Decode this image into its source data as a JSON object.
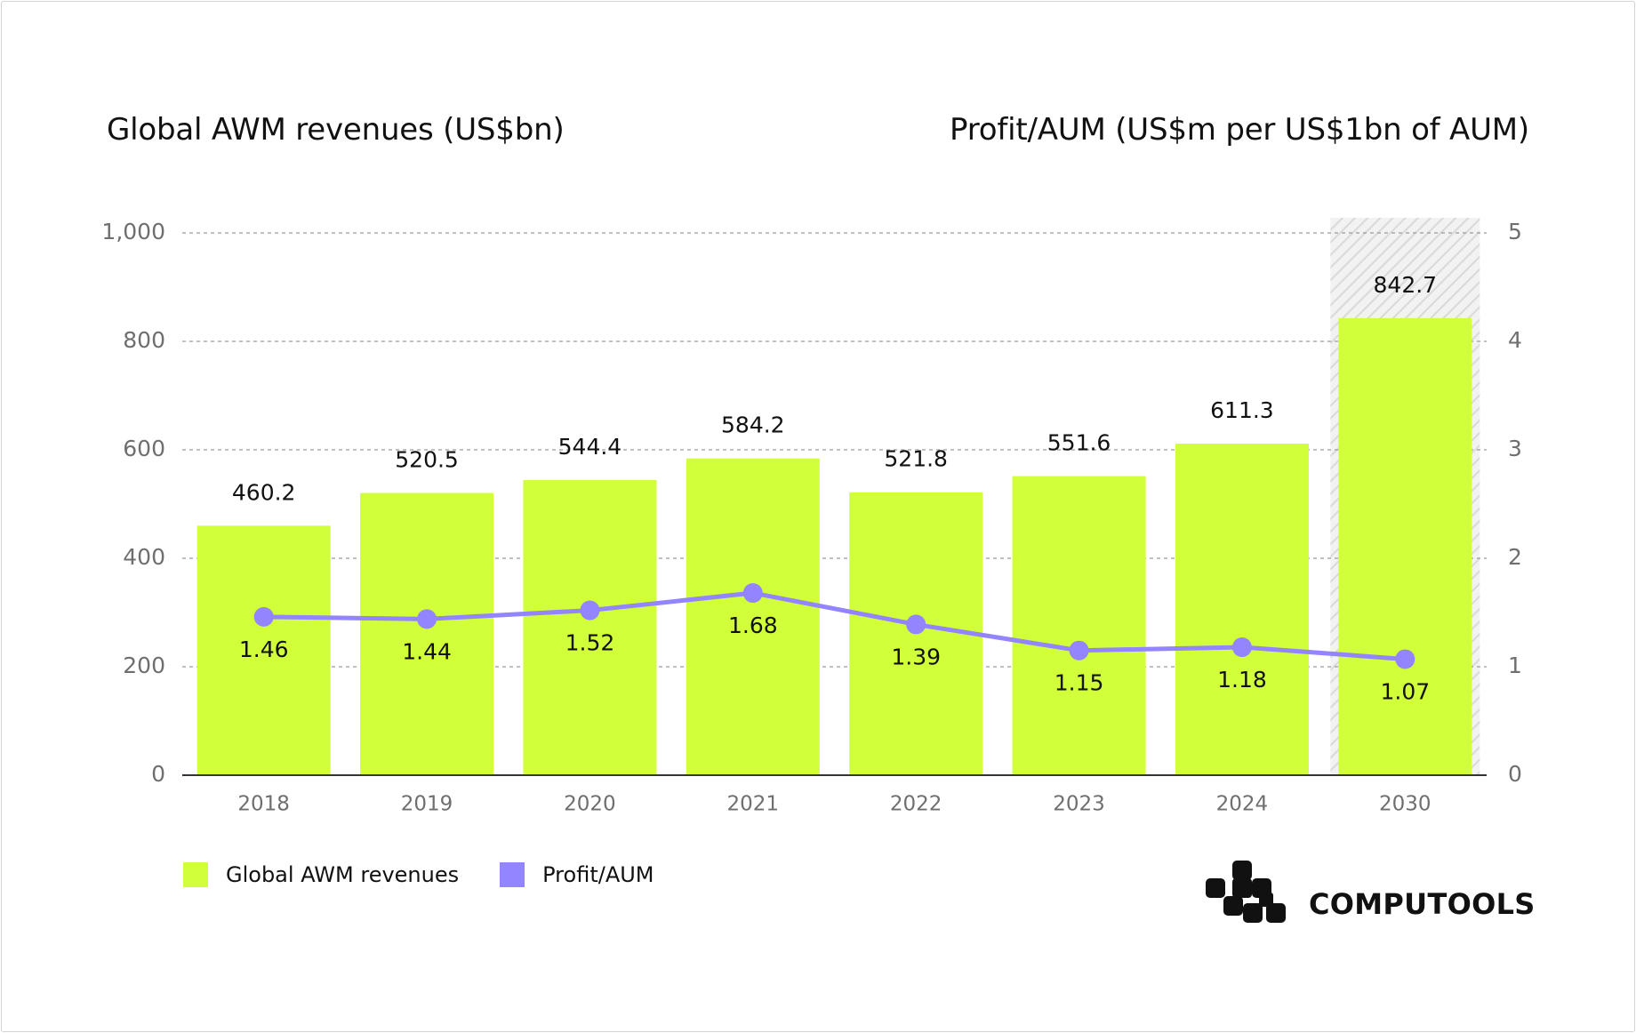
{
  "titles": {
    "left": "Global AWM revenues (US$bn)",
    "right": "Profit/AUM (US$m per US$1bn of AUM)"
  },
  "colors": {
    "bar": "#d1ff3a",
    "line": "#9384ff",
    "grid": "#9a9a9a",
    "tick": "#6f6f6f",
    "label": "#111111",
    "projection_hatch": "#d9d9d9"
  },
  "chart_data": {
    "type": "bar",
    "categories": [
      "2018",
      "2019",
      "2020",
      "2021",
      "2022",
      "2023",
      "2024",
      "2030"
    ],
    "series": [
      {
        "name": "Global AWM revenues",
        "type": "bar",
        "axis": "left",
        "values": [
          460.2,
          520.5,
          544.4,
          584.2,
          521.8,
          551.6,
          611.3,
          842.7
        ]
      },
      {
        "name": "Profit/AUM",
        "type": "line",
        "axis": "right",
        "values": [
          1.46,
          1.44,
          1.52,
          1.68,
          1.39,
          1.15,
          1.18,
          1.07
        ]
      }
    ],
    "left_axis": {
      "ylim": [
        0,
        1000
      ],
      "ticks": [
        0,
        200,
        400,
        600,
        800,
        1000
      ],
      "tick_labels": [
        "0",
        "200",
        "400",
        "600",
        "800",
        "1,000"
      ]
    },
    "right_axis": {
      "ylim": [
        0,
        5
      ],
      "ticks": [
        0,
        1,
        2,
        3,
        4,
        5
      ],
      "tick_labels": [
        "0",
        "1",
        "2",
        "3",
        "4",
        "5"
      ]
    },
    "bar_labels": [
      "460.2",
      "520.5",
      "544.4",
      "584.2",
      "521.8",
      "551.6",
      "611.3",
      "842.7"
    ],
    "line_labels": [
      "1.46",
      "1.44",
      "1.52",
      "1.68",
      "1.39",
      "1.15",
      "1.18",
      "1.07"
    ],
    "highlighted_category": "2030",
    "grid": true,
    "legend_position": "bottom-left"
  },
  "legend": {
    "items": [
      {
        "label": "Global AWM revenues",
        "color": "#d1ff3a"
      },
      {
        "label": "Profit/AUM",
        "color": "#9384ff"
      }
    ]
  },
  "brand": {
    "name": "COMPUTOOLS"
  }
}
